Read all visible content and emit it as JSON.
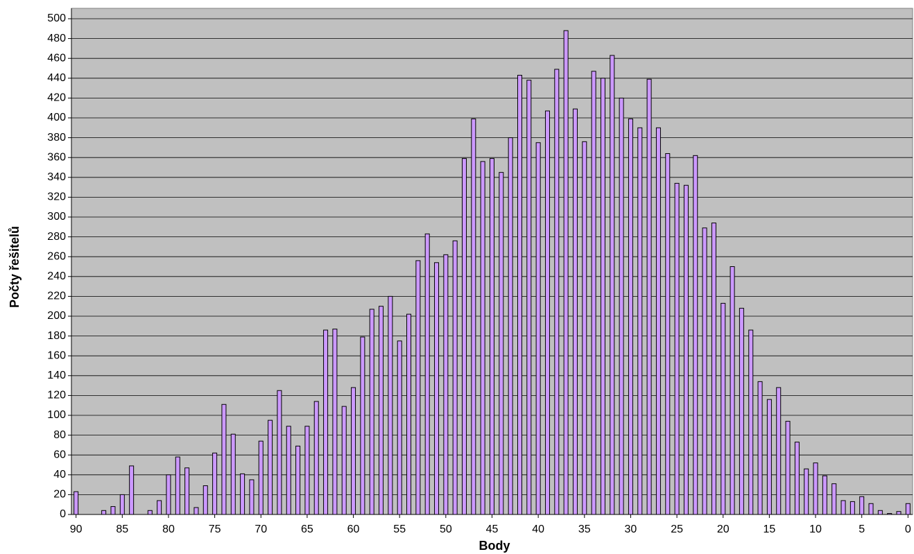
{
  "chart_data": {
    "type": "bar",
    "x_label": "Body",
    "y_label": "Počty řešitelů",
    "categories": [
      90,
      null,
      null,
      null,
      null,
      85,
      null,
      null,
      null,
      null,
      80,
      null,
      null,
      null,
      null,
      75,
      null,
      null,
      null,
      null,
      70,
      null,
      null,
      null,
      null,
      65,
      null,
      null,
      null,
      null,
      60,
      null,
      null,
      null,
      null,
      55,
      null,
      null,
      null,
      null,
      50,
      null,
      null,
      null,
      null,
      45,
      null,
      null,
      null,
      null,
      40,
      null,
      null,
      null,
      null,
      35,
      null,
      null,
      null,
      null,
      30,
      null,
      null,
      null,
      null,
      25,
      null,
      null,
      null,
      null,
      20,
      null,
      null,
      null,
      null,
      15,
      null,
      null,
      null,
      null,
      10,
      null,
      null,
      null,
      null,
      5,
      null,
      null,
      null,
      null,
      0
    ],
    "values": [
      23,
      0,
      0,
      4,
      8,
      20,
      49,
      0,
      4,
      14,
      40,
      58,
      47,
      7,
      29,
      62,
      111,
      81,
      41,
      35,
      74,
      95,
      125,
      89,
      69,
      89,
      114,
      186,
      187,
      109,
      128,
      179,
      207,
      210,
      220,
      175,
      202,
      256,
      283,
      254,
      262,
      276,
      359,
      399,
      356,
      359,
      345,
      380,
      443,
      438,
      375,
      407,
      449,
      488,
      409,
      376,
      447,
      440,
      463,
      420,
      399,
      390,
      439,
      390,
      364,
      334,
      332,
      362,
      289,
      294,
      213,
      250,
      208,
      186,
      134,
      116,
      128,
      94,
      73,
      46,
      52,
      39,
      31,
      14,
      13,
      18,
      11,
      4,
      1,
      3,
      11
    ],
    "color": "#cc99ff",
    "background": "#c0c0c0",
    "grid": true,
    "ylim": [
      0,
      500
    ],
    "yticks": [
      0,
      20,
      40,
      60,
      80,
      100,
      120,
      140,
      160,
      180,
      200,
      220,
      240,
      260,
      280,
      300,
      320,
      340,
      360,
      380,
      400,
      420,
      440,
      460,
      480,
      500
    ]
  }
}
